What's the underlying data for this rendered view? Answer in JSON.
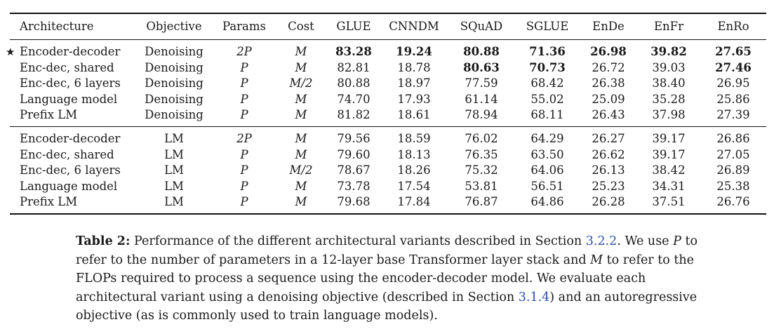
{
  "table": {
    "columns": [
      "Architecture",
      "Objective",
      "Params",
      "Cost",
      "GLUE",
      "CNNDM",
      "SQuAD",
      "SGLUE",
      "EnDe",
      "EnFr",
      "EnRo"
    ],
    "groups": [
      [
        {
          "star": "★",
          "arch": "Encoder-decoder",
          "objective": "Denoising",
          "params": "2P",
          "cost": "M",
          "values": [
            "83.28",
            "19.24",
            "80.88",
            "71.36",
            "26.98",
            "39.82",
            "27.65"
          ],
          "bold": [
            true,
            true,
            true,
            true,
            true,
            true,
            true
          ]
        },
        {
          "star": "",
          "arch": "Enc-dec, shared",
          "objective": "Denoising",
          "params": "P",
          "cost": "M",
          "values": [
            "82.81",
            "18.78",
            "80.63",
            "70.73",
            "26.72",
            "39.03",
            "27.46"
          ],
          "bold": [
            false,
            false,
            true,
            true,
            false,
            false,
            true
          ]
        },
        {
          "star": "",
          "arch": "Enc-dec, 6 layers",
          "objective": "Denoising",
          "params": "P",
          "cost": "M/2",
          "values": [
            "80.88",
            "18.97",
            "77.59",
            "68.42",
            "26.38",
            "38.40",
            "26.95"
          ],
          "bold": [
            false,
            false,
            false,
            false,
            false,
            false,
            false
          ]
        },
        {
          "star": "",
          "arch": "Language model",
          "objective": "Denoising",
          "params": "P",
          "cost": "M",
          "values": [
            "74.70",
            "17.93",
            "61.14",
            "55.02",
            "25.09",
            "35.28",
            "25.86"
          ],
          "bold": [
            false,
            false,
            false,
            false,
            false,
            false,
            false
          ]
        },
        {
          "star": "",
          "arch": "Prefix LM",
          "objective": "Denoising",
          "params": "P",
          "cost": "M",
          "values": [
            "81.82",
            "18.61",
            "78.94",
            "68.11",
            "26.43",
            "37.98",
            "27.39"
          ],
          "bold": [
            false,
            false,
            false,
            false,
            false,
            false,
            false
          ]
        }
      ],
      [
        {
          "star": "",
          "arch": "Encoder-decoder",
          "objective": "LM",
          "params": "2P",
          "cost": "M",
          "values": [
            "79.56",
            "18.59",
            "76.02",
            "64.29",
            "26.27",
            "39.17",
            "26.86"
          ],
          "bold": [
            false,
            false,
            false,
            false,
            false,
            false,
            false
          ]
        },
        {
          "star": "",
          "arch": "Enc-dec, shared",
          "objective": "LM",
          "params": "P",
          "cost": "M",
          "values": [
            "79.60",
            "18.13",
            "76.35",
            "63.50",
            "26.62",
            "39.17",
            "27.05"
          ],
          "bold": [
            false,
            false,
            false,
            false,
            false,
            false,
            false
          ]
        },
        {
          "star": "",
          "arch": "Enc-dec, 6 layers",
          "objective": "LM",
          "params": "P",
          "cost": "M/2",
          "values": [
            "78.67",
            "18.26",
            "75.32",
            "64.06",
            "26.13",
            "38.42",
            "26.89"
          ],
          "bold": [
            false,
            false,
            false,
            false,
            false,
            false,
            false
          ]
        },
        {
          "star": "",
          "arch": "Language model",
          "objective": "LM",
          "params": "P",
          "cost": "M",
          "values": [
            "73.78",
            "17.54",
            "53.81",
            "56.51",
            "25.23",
            "34.31",
            "25.38"
          ],
          "bold": [
            false,
            false,
            false,
            false,
            false,
            false,
            false
          ]
        },
        {
          "star": "",
          "arch": "Prefix LM",
          "objective": "LM",
          "params": "P",
          "cost": "M",
          "values": [
            "79.68",
            "17.84",
            "76.87",
            "64.86",
            "26.28",
            "37.51",
            "26.76"
          ],
          "bold": [
            false,
            false,
            false,
            false,
            false,
            false,
            false
          ]
        }
      ]
    ]
  },
  "caption": {
    "label": "Table 2:",
    "text_1": " Performance of the different architectural variants described in Section ",
    "ref_1": "3.2.2",
    "text_2": ". We use ",
    "var_p": "P",
    "text_3": " to refer to the number of parameters in a 12-layer base Transformer layer stack and ",
    "var_m": "M",
    "text_4": " to refer to the FLOPs required to process a sequence using the encoder-decoder model. We evaluate each architectural variant using a denoising objective (described in Section ",
    "ref_2": "3.1.4",
    "text_5": ") and an autoregressive objective (as is commonly used to train language models)."
  }
}
